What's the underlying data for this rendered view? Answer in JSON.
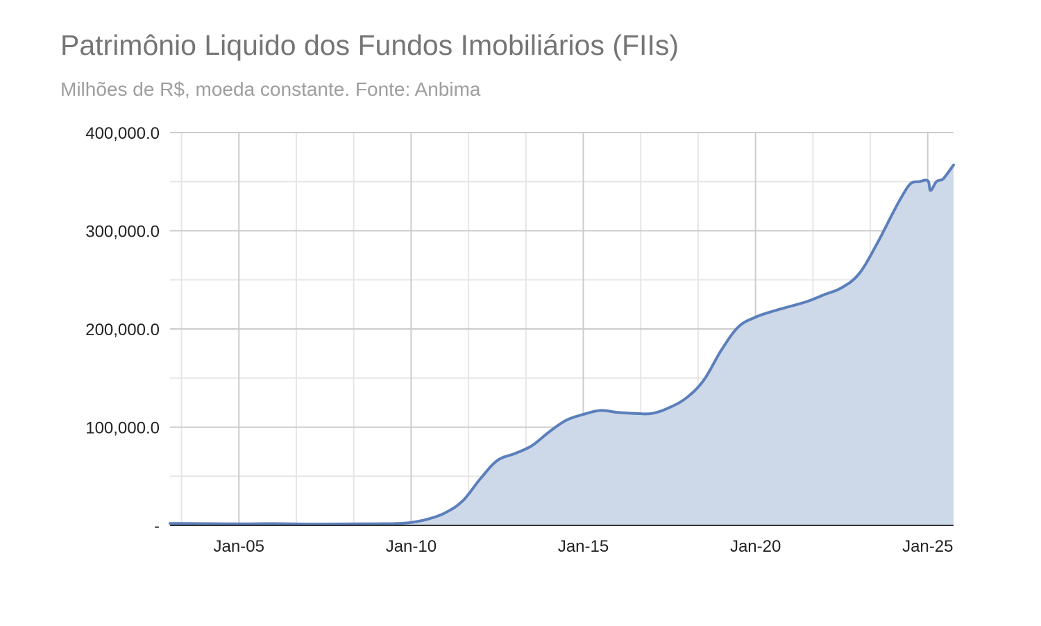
{
  "chart_data": {
    "type": "area",
    "title": "Patrimônio Liquido dos Fundos Imobiliários (FIIs)",
    "subtitle": "Milhões de R$, moeda constante. Fonte: Anbima",
    "xlabel": "",
    "ylabel": "",
    "x_ticks": [
      {
        "label": "Jan-05",
        "date": "2005-01"
      },
      {
        "label": "Jan-10",
        "date": "2010-01"
      },
      {
        "label": "Jan-15",
        "date": "2015-01"
      },
      {
        "label": "Jan-20",
        "date": "2020-01"
      },
      {
        "label": "Jan-25",
        "date": "2025-01"
      }
    ],
    "y_ticks": [
      {
        "label": "-",
        "value": 0
      },
      {
        "label": "100,000.0",
        "value": 100000
      },
      {
        "label": "200,000.0",
        "value": 200000
      },
      {
        "label": "300,000.0",
        "value": 300000
      },
      {
        "label": "400,000.0",
        "value": 400000
      }
    ],
    "xlim": [
      "2003-01",
      "2025-10"
    ],
    "ylim": [
      0,
      400000
    ],
    "grid": true,
    "legend": "none",
    "colors": {
      "line": "#5b7fbb",
      "fill": "#cdd8e8",
      "grid_major": "#cccccc",
      "grid_minor": "#e6e6e6",
      "axis": "#333333"
    },
    "series": [
      {
        "x": [
          "2003-01",
          "2004-01",
          "2005-01",
          "2006-01",
          "2007-01",
          "2008-01",
          "2009-01",
          "2009-07",
          "2010-01",
          "2010-07",
          "2011-01",
          "2011-07",
          "2012-01",
          "2012-07",
          "2013-01",
          "2013-07",
          "2014-01",
          "2014-07",
          "2015-01",
          "2015-07",
          "2016-01",
          "2016-07",
          "2017-01",
          "2017-07",
          "2018-01",
          "2018-07",
          "2019-01",
          "2019-07",
          "2020-01",
          "2020-07",
          "2021-01",
          "2021-07",
          "2022-01",
          "2022-07",
          "2023-01",
          "2023-07",
          "2024-01",
          "2024-04",
          "2024-07",
          "2024-10",
          "2025-01",
          "2025-02",
          "2025-04",
          "2025-06",
          "2025-07",
          "2025-10"
        ],
        "values": [
          2000,
          1800,
          1500,
          1800,
          1300,
          1400,
          1600,
          1800,
          3000,
          6500,
          13000,
          25000,
          47000,
          66000,
          73000,
          81000,
          95000,
          107000,
          113000,
          117000,
          115000,
          114000,
          114000,
          120000,
          130000,
          148000,
          178000,
          202000,
          212000,
          218000,
          223000,
          228000,
          235000,
          242000,
          256000,
          285000,
          319000,
          335000,
          348000,
          350000,
          351000,
          341000,
          350000,
          352000,
          355000,
          367000
        ]
      }
    ]
  }
}
